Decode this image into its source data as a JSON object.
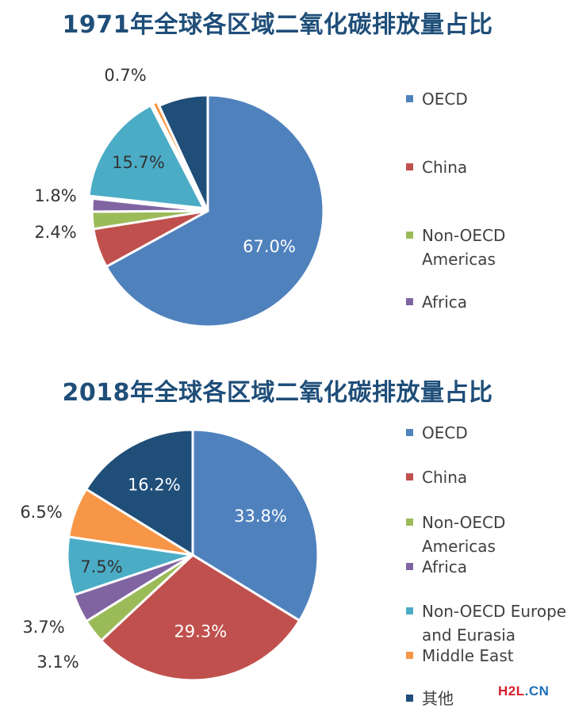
{
  "chart_data": [
    {
      "type": "pie",
      "title": "1971年全球各区域二氧化碳排放量占比",
      "slices": [
        {
          "name": "OECD",
          "value": 67.0,
          "label": "67.0%",
          "color": "#4f81bd"
        },
        {
          "name": "China",
          "value": 5.5,
          "label": "",
          "color": "#c0504d"
        },
        {
          "name": "Non-OECD Americas",
          "value": 2.4,
          "label": "2.4%",
          "color": "#9bbb59"
        },
        {
          "name": "Africa",
          "value": 1.8,
          "label": "1.8%",
          "color": "#8064a2"
        },
        {
          "name": "",
          "value": 15.7,
          "label": "15.7%",
          "color": "#4bacc6"
        },
        {
          "name": "",
          "value": 0.7,
          "label": "0.7%",
          "color": "#f79646"
        },
        {
          "name": "",
          "value": 6.9,
          "label": "",
          "color": "#1f4e79"
        }
      ],
      "legend": [
        "OECD",
        "China",
        "Non-OECD\nAmericas",
        "Africa"
      ],
      "legend_position": "right"
    },
    {
      "type": "pie",
      "title": "2018年全球各区域二氧化碳排放量占比",
      "slices": [
        {
          "name": "OECD",
          "value": 33.8,
          "label": "33.8%",
          "color": "#4f81bd"
        },
        {
          "name": "China",
          "value": 29.3,
          "label": "29.3%",
          "color": "#c0504d"
        },
        {
          "name": "Non-OECD Americas",
          "value": 3.1,
          "label": "3.1%",
          "color": "#9bbb59"
        },
        {
          "name": "Africa",
          "value": 3.7,
          "label": "3.7%",
          "color": "#8064a2"
        },
        {
          "name": "Non-OECD Europe and Eurasia",
          "value": 7.5,
          "label": "7.5%",
          "color": "#4bacc6"
        },
        {
          "name": "Middle East",
          "value": 6.5,
          "label": "6.5%",
          "color": "#f79646"
        },
        {
          "name": "其他",
          "value": 16.2,
          "label": "16.2%",
          "color": "#1f4e79"
        }
      ],
      "legend": [
        "OECD",
        "China",
        "Non-OECD\nAmericas",
        "Africa",
        "Non-OECD Europe\nand Eurasia",
        "Middle East",
        "其他"
      ],
      "legend_position": "right"
    }
  ],
  "watermark": {
    "part1": "H2L",
    "part2": ".CN"
  }
}
